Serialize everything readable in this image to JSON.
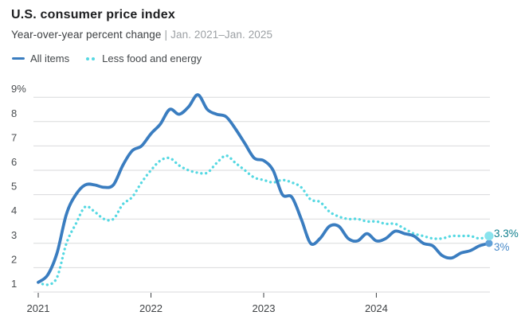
{
  "header": {
    "title": "U.S. consumer price index",
    "subtitle": "Year-over-year percent change",
    "separator": "|",
    "date_range": "Jan. 2021–Jan. 2025"
  },
  "legend": {
    "items": [
      {
        "label": "All items"
      },
      {
        "label": "Less food and energy"
      }
    ]
  },
  "chart_data": {
    "type": "line",
    "title": "U.S. consumer price index",
    "subtitle": "Year-over-year percent change | Jan. 2021–Jan. 2025",
    "x_unit": "month",
    "x_range": [
      "Jan 2021",
      "Jan 2025"
    ],
    "x_tick_labels": [
      "2021",
      "2022",
      "2023",
      "2024"
    ],
    "x_tick_month_indices": [
      0,
      12,
      24,
      36
    ],
    "ylim": [
      1,
      9
    ],
    "y_ticks": [
      1,
      2,
      3,
      4,
      5,
      6,
      7,
      8,
      9
    ],
    "y_tick_labels": [
      "1",
      "2",
      "3",
      "4",
      "5",
      "6",
      "7",
      "8",
      "9%"
    ],
    "grid": true,
    "legend_position": "top-left",
    "series": [
      {
        "name": "All items",
        "style": "solid",
        "color": "#3a7dc0",
        "end_dot_color": "#60a0d8",
        "end_label": "3%",
        "end_label_color": "#4a8bc9",
        "values": [
          1.4,
          1.7,
          2.6,
          4.2,
          5.0,
          5.4,
          5.4,
          5.3,
          5.4,
          6.2,
          6.8,
          7.0,
          7.5,
          7.9,
          8.5,
          8.3,
          8.6,
          9.1,
          8.5,
          8.3,
          8.2,
          7.7,
          7.1,
          6.5,
          6.4,
          6.0,
          5.0,
          4.9,
          4.0,
          3.0,
          3.2,
          3.7,
          3.7,
          3.2,
          3.1,
          3.4,
          3.1,
          3.2,
          3.5,
          3.4,
          3.3,
          3.0,
          2.9,
          2.5,
          2.4,
          2.6,
          2.7,
          2.9,
          3.0
        ]
      },
      {
        "name": "Less food and energy",
        "style": "dotted",
        "color": "#55d8e2",
        "end_dot_color": "#8ae3ed",
        "end_label": "3.3%",
        "end_label_color": "#0f7f8d",
        "values": [
          1.4,
          1.3,
          1.6,
          3.0,
          3.8,
          4.5,
          4.3,
          4.0,
          4.0,
          4.6,
          4.9,
          5.5,
          6.0,
          6.4,
          6.5,
          6.2,
          6.0,
          5.9,
          5.9,
          6.3,
          6.6,
          6.3,
          6.0,
          5.7,
          5.6,
          5.5,
          5.6,
          5.5,
          5.3,
          4.8,
          4.7,
          4.3,
          4.1,
          4.0,
          4.0,
          3.9,
          3.9,
          3.8,
          3.8,
          3.6,
          3.4,
          3.3,
          3.2,
          3.2,
          3.3,
          3.3,
          3.3,
          3.2,
          3.3
        ]
      }
    ]
  }
}
